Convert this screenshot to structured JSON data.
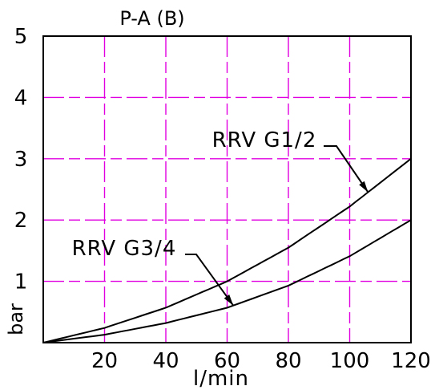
{
  "chart_data": {
    "type": "line",
    "title": "P-A (B)",
    "xlabel": "l/min",
    "ylabel": "bar",
    "xlim": [
      0,
      120
    ],
    "ylim": [
      0,
      5
    ],
    "x_ticks": [
      20,
      40,
      60,
      80,
      100,
      120
    ],
    "y_ticks": [
      1,
      2,
      3,
      4,
      5
    ],
    "grid": true,
    "grid_style": "dashed",
    "grid_color": "#e000e0",
    "line_color": "#000000",
    "series": [
      {
        "name": "RRV G1/2",
        "x": [
          0,
          20,
          40,
          60,
          80,
          100,
          120
        ],
        "y": [
          0,
          0.24,
          0.57,
          1.0,
          1.55,
          2.22,
          3.0
        ]
      },
      {
        "name": "RRV G3/4",
        "x": [
          0,
          20,
          40,
          60,
          80,
          100,
          120
        ],
        "y": [
          0,
          0.13,
          0.32,
          0.57,
          0.93,
          1.41,
          2.0
        ]
      }
    ],
    "annotations": [
      {
        "text": "RRV G1/2",
        "series": 0,
        "points_to_x": 106
      },
      {
        "text": "RRV G3/4",
        "series": 1,
        "points_to_x": 62
      }
    ]
  }
}
